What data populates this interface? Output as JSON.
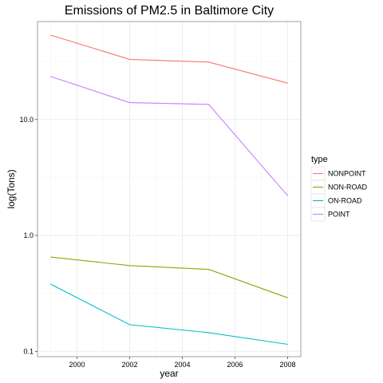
{
  "chart_data": {
    "type": "line",
    "title": "Emissions of PM2.5 in Baltimore City",
    "xlabel": "year",
    "ylabel": "log(Tons)",
    "x": [
      1999,
      2002,
      2005,
      2008
    ],
    "xlim": [
      1998.5,
      2008.5
    ],
    "x_ticks": [
      2000,
      2002,
      2004,
      2006,
      2008
    ],
    "x_tick_labels": [
      "2000",
      "2002",
      "2004",
      "2006",
      "2008"
    ],
    "y_scale": "log10",
    "ylim": [
      0.09,
      70
    ],
    "y_ticks": [
      0.1,
      1.0,
      10.0
    ],
    "y_tick_labels": [
      "0.1",
      "1.0",
      "10.0"
    ],
    "grid": true,
    "legend": {
      "title": "type",
      "position": "right"
    },
    "series": [
      {
        "name": "NONPOINT",
        "color": "#F8766D",
        "values": [
          53.5,
          33.0,
          31.3,
          20.6
        ]
      },
      {
        "name": "NON-ROAD",
        "color": "#7CAE00",
        "values": [
          0.65,
          0.55,
          0.51,
          0.29
        ]
      },
      {
        "name": "ON-ROAD",
        "color": "#00BFC4",
        "values": [
          0.38,
          0.17,
          0.145,
          0.115
        ]
      },
      {
        "name": "POINT",
        "color": "#C77CFF",
        "values": [
          23.5,
          14.0,
          13.5,
          2.2
        ]
      }
    ]
  }
}
